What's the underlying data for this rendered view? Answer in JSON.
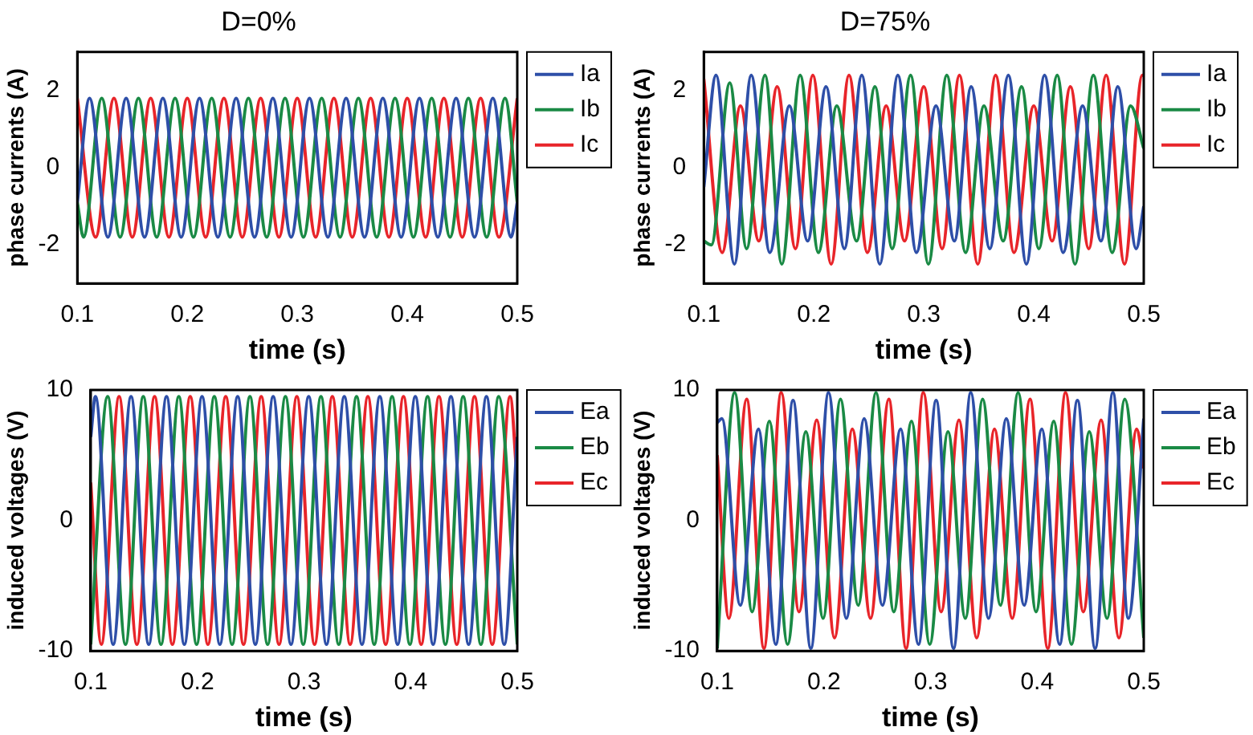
{
  "chart_data": [
    {
      "type": "line",
      "title": "D=0%",
      "xlabel": "time (s)",
      "ylabel": "phase currents (A)",
      "xlim": [
        0.1,
        0.5
      ],
      "xticks": [
        0.1,
        0.2,
        0.3,
        0.4,
        0.5
      ],
      "ylim": [
        -3,
        3
      ],
      "yticks": [
        -2,
        0,
        2
      ],
      "legend": "right",
      "series": [
        {
          "name": "Ia",
          "color": "#2e4fa8",
          "x": [
            0.1,
            0.1111,
            0.1278,
            0.1444,
            0.1611,
            0.1778,
            0.1944,
            0.2111,
            0.2278,
            0.2444,
            0.2611,
            0.2778,
            0.2944,
            0.3111,
            0.3278,
            0.3444,
            0.3611,
            0.3778,
            0.3944,
            0.4111,
            0.4278,
            0.4444,
            0.4611,
            0.4778,
            0.4944,
            0.5
          ],
          "values": [
            -0.9,
            1.8,
            -1.8,
            1.8,
            -1.8,
            1.8,
            -1.8,
            1.8,
            -1.8,
            1.8,
            -1.8,
            1.8,
            -1.8,
            1.8,
            -1.8,
            1.8,
            -1.8,
            1.8,
            -1.8,
            1.8,
            -1.8,
            1.8,
            -1.8,
            1.8,
            -1.8,
            -0.9
          ]
        },
        {
          "name": "Ib",
          "color": "#1a8a45",
          "x": [
            0.1,
            0.1056,
            0.1222,
            0.1389,
            0.1556,
            0.1722,
            0.1889,
            0.2056,
            0.2222,
            0.2389,
            0.2556,
            0.2722,
            0.2889,
            0.3056,
            0.3222,
            0.3389,
            0.3556,
            0.3722,
            0.3889,
            0.4056,
            0.4222,
            0.4389,
            0.4556,
            0.4722,
            0.4889,
            0.5
          ],
          "values": [
            -0.9,
            -1.8,
            1.8,
            -1.8,
            1.8,
            -1.8,
            1.8,
            -1.8,
            1.8,
            -1.8,
            1.8,
            -1.8,
            1.8,
            -1.8,
            1.8,
            -1.8,
            1.8,
            -1.8,
            1.8,
            -1.8,
            1.8,
            -1.8,
            1.8,
            -1.8,
            1.8,
            -0.9
          ]
        },
        {
          "name": "Ic",
          "color": "#e8252a",
          "x": [
            0.1,
            0.1167,
            0.1333,
            0.15,
            0.1667,
            0.1833,
            0.2,
            0.2167,
            0.2333,
            0.25,
            0.2667,
            0.2833,
            0.3,
            0.3167,
            0.3333,
            0.35,
            0.3667,
            0.3833,
            0.4,
            0.4167,
            0.4333,
            0.45,
            0.4667,
            0.4833,
            0.5
          ],
          "values": [
            1.8,
            -1.8,
            1.8,
            -1.8,
            1.8,
            -1.8,
            1.8,
            -1.8,
            1.8,
            -1.8,
            1.8,
            -1.8,
            1.8,
            -1.8,
            1.8,
            -1.8,
            1.8,
            -1.8,
            1.8,
            -1.8,
            1.8,
            -1.8,
            1.8,
            -1.8,
            1.8
          ]
        }
      ]
    },
    {
      "type": "line",
      "title": "D=75%",
      "xlabel": "time (s)",
      "ylabel": "phase currents (A)",
      "xlim": [
        0.1,
        0.5
      ],
      "xticks": [
        0.1,
        0.2,
        0.3,
        0.4,
        0.5
      ],
      "ylim": [
        -3,
        3
      ],
      "yticks": [
        -2,
        0,
        2
      ],
      "legend": "right",
      "series": [
        {
          "name": "Ia",
          "color": "#2e4fa8",
          "x": [
            0.1,
            0.1111,
            0.1278,
            0.1431,
            0.16,
            0.1778,
            0.1944,
            0.2111,
            0.2278,
            0.2436,
            0.26,
            0.2764,
            0.2933,
            0.3111,
            0.3278,
            0.3431,
            0.36,
            0.3769,
            0.3933,
            0.4098,
            0.4267,
            0.4444,
            0.4611,
            0.4764,
            0.4931,
            0.5
          ],
          "values": [
            -0.5,
            2.4,
            -2.5,
            2.4,
            -2.2,
            1.6,
            -1.9,
            2.1,
            -2.1,
            2.4,
            -2.5,
            2.4,
            -2.2,
            1.6,
            -1.9,
            2.1,
            -2.1,
            2.4,
            -2.5,
            2.4,
            -2.2,
            1.6,
            -1.9,
            2.1,
            -2.1,
            -1
          ]
        },
        {
          "name": "Ib",
          "color": "#1a8a45",
          "x": [
            0.1,
            0.1069,
            0.1236,
            0.1389,
            0.1556,
            0.1709,
            0.1876,
            0.2042,
            0.2209,
            0.2389,
            0.2556,
            0.2713,
            0.288,
            0.3042,
            0.3209,
            0.338,
            0.3547,
            0.3722,
            0.3889,
            0.4046,
            0.4213,
            0.4375,
            0.4542,
            0.4713,
            0.488,
            0.5
          ],
          "values": [
            -1.9,
            -2.0,
            2.2,
            -2.1,
            2.4,
            -2.5,
            2.4,
            -2.2,
            1.6,
            -1.9,
            2.1,
            -2.1,
            2.4,
            -2.5,
            2.4,
            -2.2,
            1.6,
            -1.9,
            2.1,
            -2.1,
            2.4,
            -2.5,
            2.4,
            -2.2,
            1.6,
            0.5
          ]
        },
        {
          "name": "Ic",
          "color": "#e8252a",
          "x": [
            0.1,
            0.1167,
            0.1333,
            0.15,
            0.1667,
            0.1833,
            0.1991,
            0.2158,
            0.232,
            0.2487,
            0.2658,
            0.2825,
            0.3,
            0.3167,
            0.3324,
            0.3491,
            0.3653,
            0.382,
            0.4,
            0.4167,
            0.4333,
            0.45,
            0.4658,
            0.4825,
            0.4987,
            0.5
          ],
          "values": [
            2.3,
            -2.2,
            1.6,
            -1.9,
            2.1,
            -2.1,
            2.4,
            -2.5,
            2.4,
            -2.2,
            1.6,
            -1.9,
            2.1,
            -2.1,
            2.4,
            -2.5,
            2.4,
            -2.2,
            1.6,
            -1.9,
            2.1,
            -2.1,
            2.4,
            -2.5,
            2.4,
            2.4
          ]
        }
      ]
    },
    {
      "type": "line",
      "xlabel": "time (s)",
      "ylabel": "induced voltages (V)",
      "xlim": [
        0.1,
        0.5
      ],
      "xticks": [
        0.1,
        0.2,
        0.3,
        0.4,
        0.5
      ],
      "ylim": [
        -10,
        10
      ],
      "yticks": [
        -10,
        0,
        10
      ],
      "legend": "right",
      "series": [
        {
          "name": "Ea",
          "color": "#2e4fa8",
          "x": [
            0.1,
            0.1044,
            0.1211,
            0.1378,
            0.1544,
            0.1711,
            0.1878,
            0.2044,
            0.2211,
            0.2378,
            0.2544,
            0.2711,
            0.2878,
            0.3044,
            0.3211,
            0.3378,
            0.3544,
            0.3711,
            0.3878,
            0.4044,
            0.4211,
            0.4378,
            0.4544,
            0.4711,
            0.4878,
            0.5
          ],
          "values": [
            6.4,
            9.5,
            -9.5,
            9.5,
            -9.5,
            9.5,
            -9.5,
            9.5,
            -9.5,
            9.5,
            -9.5,
            9.5,
            -9.5,
            9.5,
            -9.5,
            9.5,
            -9.5,
            9.5,
            -9.5,
            9.5,
            -9.5,
            9.5,
            -9.5,
            9.5,
            -9.5,
            6.4
          ]
        },
        {
          "name": "Eb",
          "color": "#1a8a45",
          "x": [
            0.1,
            0.1159,
            0.1326,
            0.1493,
            0.1659,
            0.1826,
            0.1993,
            0.2159,
            0.2326,
            0.2493,
            0.2659,
            0.2826,
            0.2993,
            0.3159,
            0.3326,
            0.3493,
            0.3659,
            0.3826,
            0.3993,
            0.4159,
            0.4326,
            0.4493,
            0.4659,
            0.4826,
            0.5
          ],
          "values": [
            -9.5,
            9.5,
            -9.5,
            9.5,
            -9.5,
            9.5,
            -9.5,
            9.5,
            -9.5,
            9.5,
            -9.5,
            9.5,
            -9.5,
            9.5,
            -9.5,
            9.5,
            -9.5,
            9.5,
            -9.5,
            9.5,
            -9.5,
            9.5,
            -9.5,
            9.5,
            -9.5
          ]
        },
        {
          "name": "Ec",
          "color": "#e8252a",
          "x": [
            0.1,
            0.1099,
            0.1266,
            0.1433,
            0.1599,
            0.1766,
            0.1933,
            0.2099,
            0.2266,
            0.2433,
            0.2599,
            0.2766,
            0.2933,
            0.3099,
            0.3266,
            0.3433,
            0.3599,
            0.3766,
            0.3933,
            0.4099,
            0.4266,
            0.4433,
            0.4599,
            0.4766,
            0.4933,
            0.5
          ],
          "values": [
            2.9,
            -9.5,
            9.5,
            -9.5,
            9.5,
            -9.5,
            9.5,
            -9.5,
            9.5,
            -9.5,
            9.5,
            -9.5,
            9.5,
            -9.5,
            9.5,
            -9.5,
            9.5,
            -9.5,
            9.5,
            -9.5,
            9.5,
            -9.5,
            9.5,
            -9.5,
            9.5,
            2.9
          ]
        }
      ]
    },
    {
      "type": "line",
      "xlabel": "time (s)",
      "ylabel": "induced voltages (V)",
      "xlim": [
        0.1,
        0.5
      ],
      "xticks": [
        0.1,
        0.2,
        0.3,
        0.4,
        0.5
      ],
      "ylim": [
        -10,
        10
      ],
      "yticks": [
        -10,
        0,
        10
      ],
      "legend": "right",
      "series": [
        {
          "name": "Ea",
          "color": "#2e4fa8",
          "x": [
            0.1,
            0.1044,
            0.1216,
            0.1387,
            0.1549,
            0.1711,
            0.1878,
            0.2044,
            0.2211,
            0.2378,
            0.2549,
            0.272,
            0.2887,
            0.3053,
            0.3216,
            0.3378,
            0.3544,
            0.3711,
            0.3878,
            0.4044,
            0.4211,
            0.4378,
            0.4544,
            0.4711,
            0.4856,
            0.5
          ],
          "values": [
            7.5,
            7.8,
            -6.5,
            7,
            -9.5,
            9.2,
            -9.8,
            9.8,
            -7.5,
            7.8,
            -6.5,
            7,
            -9.5,
            9.2,
            -9.8,
            9.8,
            -7.5,
            7.8,
            -6.5,
            7,
            -9.5,
            9.2,
            -9.8,
            9.8,
            -7.5,
            7.8
          ]
        },
        {
          "name": "Eb",
          "color": "#1a8a45",
          "x": [
            0.1,
            0.1164,
            0.1327,
            0.1489,
            0.166,
            0.1831,
            0.1993,
            0.2156,
            0.2322,
            0.2489,
            0.2656,
            0.2822,
            0.2993,
            0.3164,
            0.3327,
            0.3489,
            0.3656,
            0.3822,
            0.399,
            0.4156,
            0.4322,
            0.4489,
            0.4656,
            0.4822,
            0.5
          ],
          "values": [
            -9.8,
            9.8,
            -7,
            7.6,
            -9.5,
            6.8,
            -7.5,
            9.3,
            -6.5,
            9.8,
            -7,
            7.6,
            -9.5,
            6.8,
            -7.5,
            9.3,
            -6.5,
            9.8,
            -7,
            7.6,
            -9.5,
            6.8,
            -7.5,
            9.3,
            -9
          ]
        },
        {
          "name": "Ec",
          "color": "#e8252a",
          "x": [
            0.1,
            0.1109,
            0.1276,
            0.1438,
            0.16,
            0.1767,
            0.1933,
            0.21,
            0.2267,
            0.2438,
            0.2609,
            0.2771,
            0.2933,
            0.31,
            0.3267,
            0.3433,
            0.36,
            0.3767,
            0.3933,
            0.41,
            0.4267,
            0.4433,
            0.46,
            0.4767,
            0.4933,
            0.5
          ],
          "values": [
            5,
            -7.5,
            9.3,
            -9.8,
            9.8,
            -7,
            7.7,
            -9,
            7,
            -7.5,
            9.3,
            -9.8,
            9.8,
            -7,
            7.7,
            -9,
            7,
            -7.5,
            9.3,
            -9.8,
            9.8,
            -7,
            7.7,
            -9,
            7,
            4
          ]
        }
      ]
    }
  ]
}
